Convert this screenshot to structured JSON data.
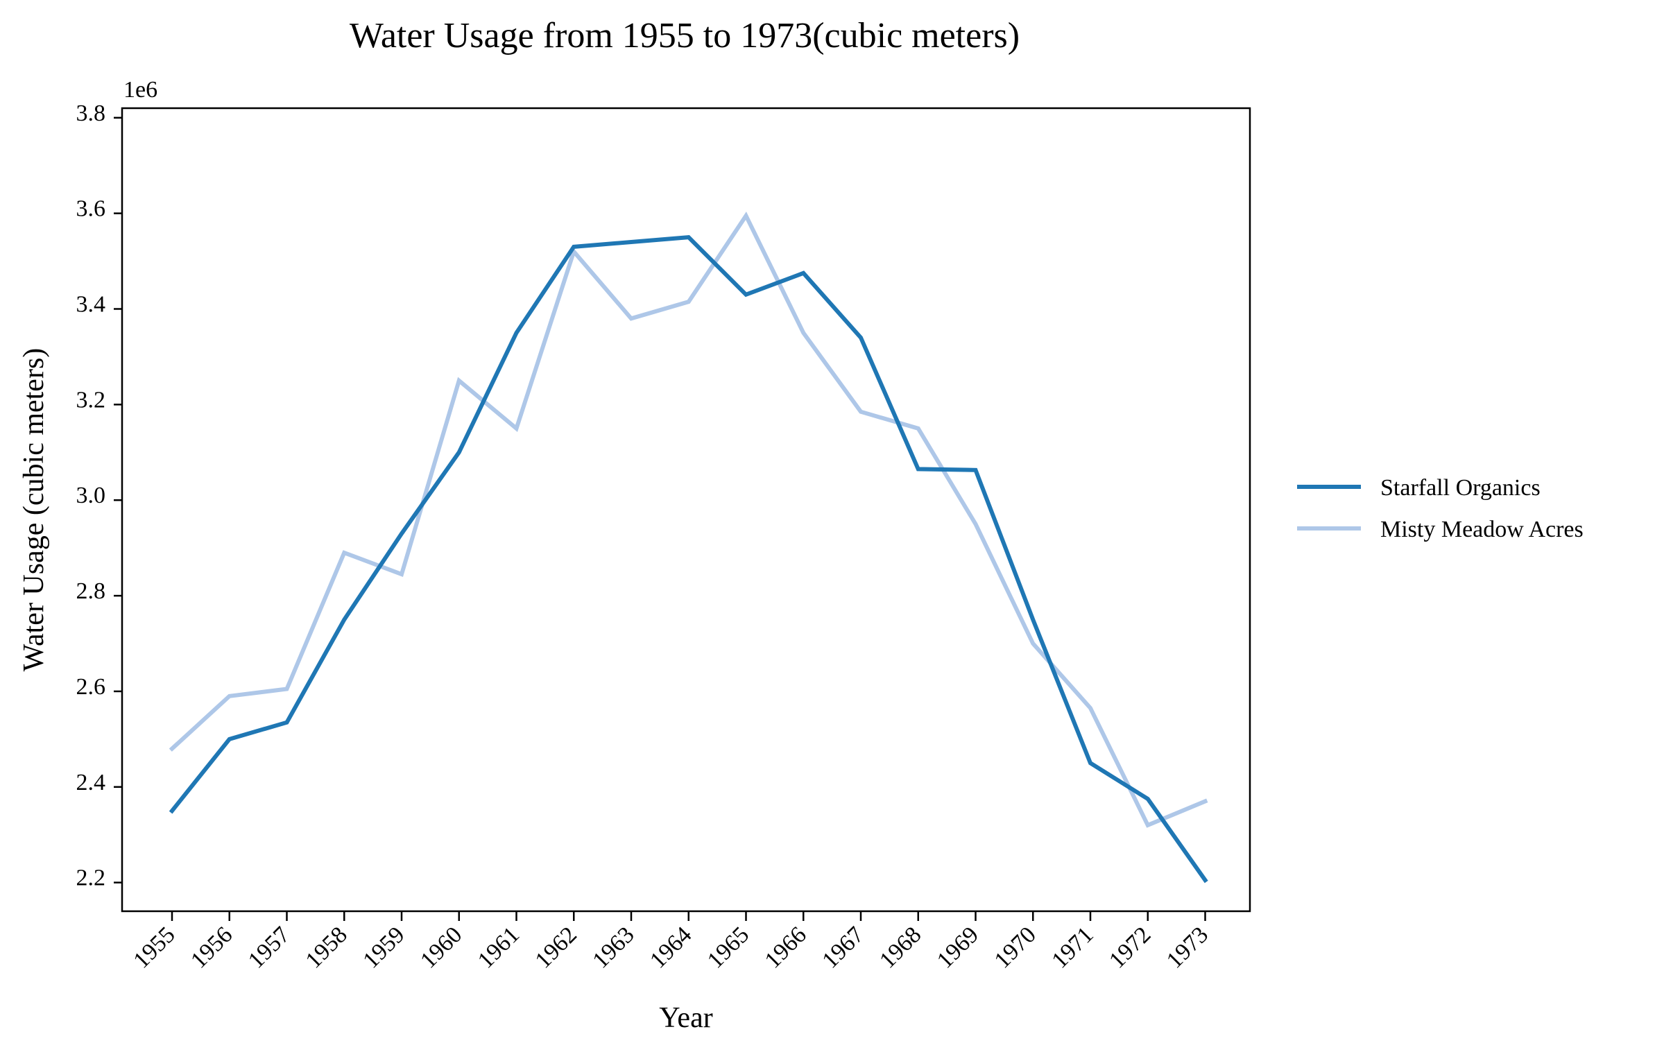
{
  "chart_data": {
    "type": "line",
    "title": "Water Usage from 1955 to 1973(cubic meters)",
    "xlabel": "Year",
    "ylabel": "Water Usage (cubic meters)",
    "y_exponent_label": "1e6",
    "ylim": [
      2.14,
      3.82
    ],
    "y_ticks": [
      "2.2",
      "2.4",
      "2.6",
      "2.8",
      "3.0",
      "3.2",
      "3.4",
      "3.6",
      "3.8"
    ],
    "grid": false,
    "legend_position": "right",
    "x": [
      "1955",
      "1956",
      "1957",
      "1958",
      "1959",
      "1960",
      "1961",
      "1962",
      "1963",
      "1964",
      "1965",
      "1966",
      "1967",
      "1968",
      "1969",
      "1970",
      "1971",
      "1972",
      "1973"
    ],
    "series": [
      {
        "name": "Starfall Organics",
        "color": "#1f77b4",
        "values": [
          2.35,
          2.5,
          2.535,
          2.75,
          2.93,
          3.1,
          3.35,
          3.53,
          3.54,
          3.55,
          3.43,
          3.475,
          3.34,
          3.065,
          3.063,
          2.75,
          2.45,
          2.375,
          2.205
        ]
      },
      {
        "name": "Misty Meadow Acres",
        "color": "#aec7e8",
        "values": [
          2.48,
          2.59,
          2.605,
          2.89,
          2.845,
          3.25,
          3.15,
          3.52,
          3.38,
          3.415,
          3.595,
          3.35,
          3.185,
          3.15,
          2.95,
          2.7,
          2.565,
          2.32,
          2.37
        ]
      }
    ]
  }
}
